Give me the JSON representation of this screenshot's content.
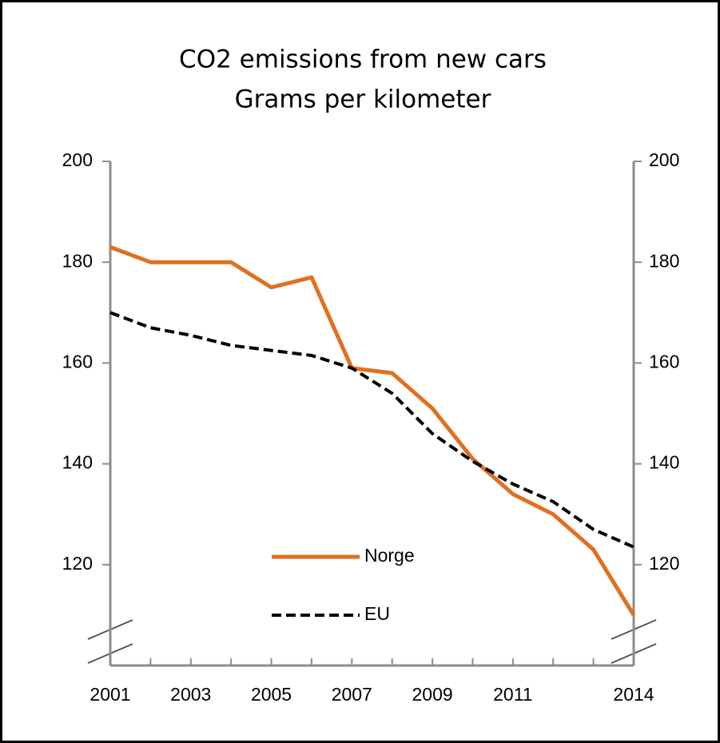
{
  "chart_data": {
    "type": "line",
    "title": "CO2 emissions from new cars",
    "subtitle": "Grams per kilometer",
    "x": [
      2001,
      2002,
      2003,
      2004,
      2005,
      2006,
      2007,
      2008,
      2009,
      2010,
      2011,
      2012,
      2013,
      2014
    ],
    "series": [
      {
        "name": "Norge",
        "color": "#e07020",
        "dash": false,
        "values": [
          183,
          180,
          180,
          180,
          175,
          177,
          159,
          158,
          151,
          141,
          134,
          130,
          123,
          110
        ]
      },
      {
        "name": "EU",
        "color": "#000000",
        "dash": true,
        "values": [
          170,
          167,
          165.5,
          163.5,
          162.5,
          161.5,
          159,
          154,
          146,
          140.5,
          136,
          132.5,
          127,
          123.5
        ]
      }
    ],
    "xlim": [
      2001,
      2014
    ],
    "xticks": [
      2001,
      2003,
      2005,
      2007,
      2009,
      2011,
      2014
    ],
    "ylim": [
      100,
      200
    ],
    "yticks": [
      120,
      140,
      160,
      180,
      200
    ],
    "y2lim": [
      100,
      200
    ],
    "y2ticks": [
      120,
      140,
      160,
      180,
      200
    ],
    "legend": "lower center",
    "grid": false
  }
}
